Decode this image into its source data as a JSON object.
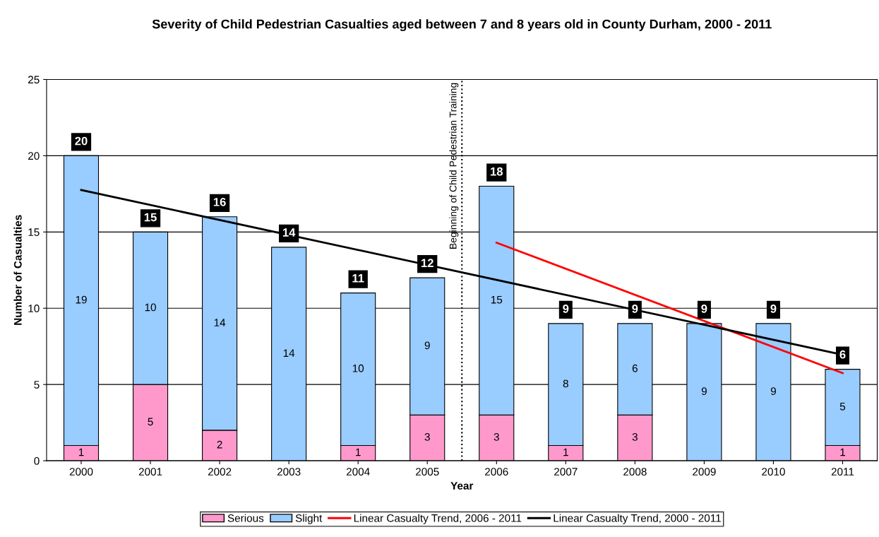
{
  "chart_data": {
    "type": "bar",
    "title": "Severity of Child Pedestrian Casualties aged between 7 and 8 years old in County Durham, 2000 - 2011",
    "xlabel": "Year",
    "ylabel": "Number of Casualties",
    "x": [
      2000,
      2001,
      2002,
      2003,
      2004,
      2005,
      2006,
      2007,
      2008,
      2009,
      2010,
      2011
    ],
    "xlim": [
      1999.5,
      2011.5
    ],
    "xticks": [
      2000,
      2001,
      2002,
      2003,
      2004,
      2005,
      2006,
      2007,
      2008,
      2009,
      2010,
      2011
    ],
    "ylim": [
      0,
      25
    ],
    "yticks": [
      0,
      5,
      10,
      15,
      20,
      25
    ],
    "stacked": true,
    "grid": "y",
    "legend": "bottom",
    "series": [
      {
        "name": "Serious",
        "color": "#ff99cc",
        "values": [
          1,
          5,
          2,
          0,
          1,
          3,
          3,
          1,
          3,
          0,
          0,
          1
        ],
        "value_labels": [
          "1",
          "5",
          "2",
          null,
          "1",
          "3",
          "3",
          "1",
          "3",
          null,
          null,
          "1"
        ]
      },
      {
        "name": "Slight",
        "color": "#99ccff",
        "values": [
          19,
          10,
          14,
          14,
          10,
          9,
          15,
          8,
          6,
          9,
          9,
          5
        ],
        "value_labels": [
          "19",
          "10",
          "14",
          "14",
          "10",
          "9",
          "15",
          "8",
          "6",
          "9",
          "9",
          "5"
        ]
      },
      {
        "name": "Linear Casualty Trend, 2006 - 2011",
        "type": "line",
        "color": "#ff0000",
        "x": [
          2006,
          2011
        ],
        "values": [
          14.3,
          5.75
        ]
      },
      {
        "name": "Linear Casualty Trend, 2000 - 2011",
        "type": "line",
        "color": "#000000",
        "x": [
          2000,
          2011
        ],
        "values": [
          17.75,
          6.95
        ]
      }
    ],
    "totals": [
      "20",
      "15",
      "16",
      "14",
      "11",
      "12",
      "18",
      "9",
      "9",
      "9",
      "9",
      "6"
    ],
    "ref_lines": [
      {
        "axis": "x",
        "value": 2005.5,
        "label": "Beginning of Child Pedestrian Training",
        "color": "#000000",
        "line_style": "dotted"
      }
    ]
  }
}
